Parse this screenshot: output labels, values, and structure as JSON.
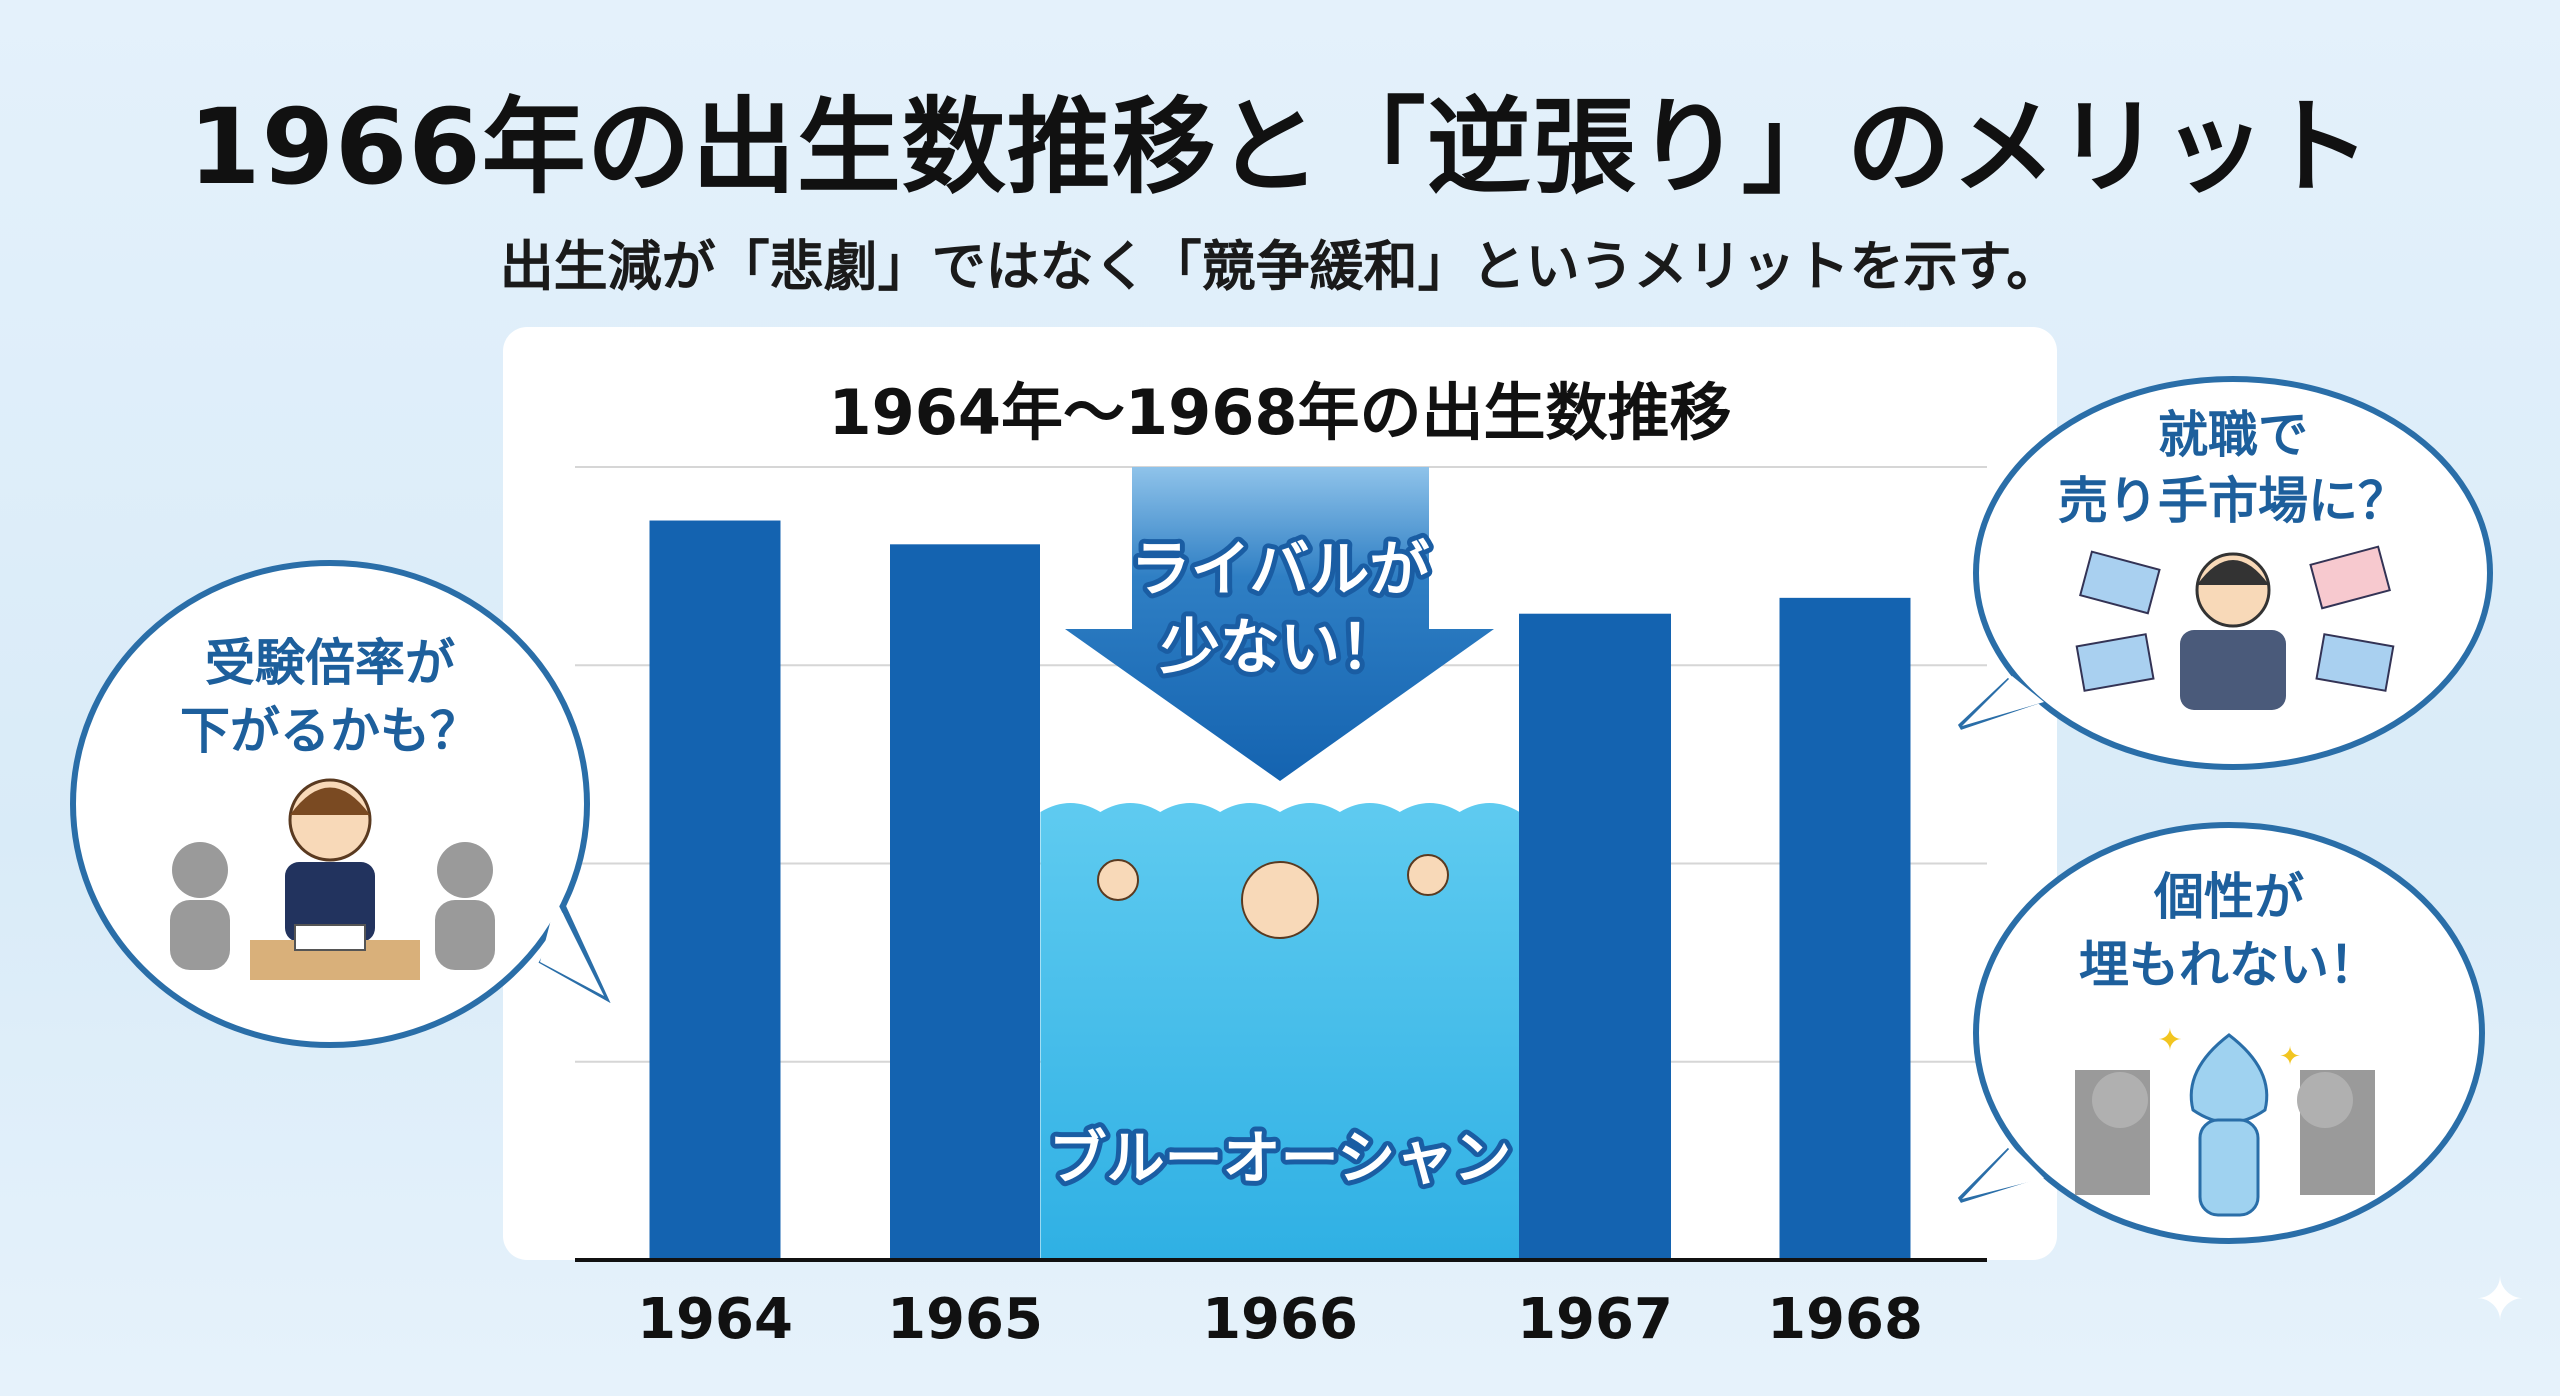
{
  "header": {
    "title": "1966年の出生数推移と「逆張り」のメリット",
    "subtitle": "出生減が「悲劇」ではなく「競争緩和」というメリットを示す。"
  },
  "chart_data": {
    "type": "bar",
    "title": "1964年～1968年の出生数推移",
    "xlabel": "",
    "ylabel": "",
    "categories": [
      "1964",
      "1965",
      "1966",
      "1967",
      "1968"
    ],
    "values": [
      3.73,
      3.61,
      2.26,
      3.26,
      3.34
    ],
    "ylim": [
      0,
      4
    ],
    "grid": true,
    "y_ticks_labeled": false,
    "bar_color": "#1463b0",
    "highlight": {
      "category": "1966",
      "style": "water-illustration",
      "color": "#4cc0ea"
    }
  },
  "annotations": {
    "arrow_text": [
      "ライバルが",
      "少ない！"
    ],
    "ocean_label": "ブルーオーシャン"
  },
  "bubbles": [
    {
      "lines": [
        "受験倍率が",
        "下がるかも？"
      ],
      "icon": "student-taking-exam-icon"
    },
    {
      "lines": [
        "就職で",
        "売り手市場に？"
      ],
      "icon": "businessman-with-job-offers-icon"
    },
    {
      "lines": [
        "個性が",
        "埋もれない！"
      ],
      "icon": "standout-character-icon"
    }
  ],
  "colors": {
    "background": "#e1effa",
    "accent": "#1463b0",
    "bubble_border": "#2a6ea8",
    "bubble_text": "#1d5f9c"
  }
}
